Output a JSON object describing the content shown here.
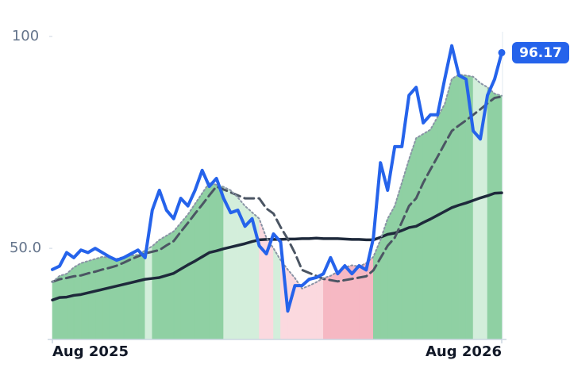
{
  "chart_data": {
    "type": "line",
    "xlim": [
      0,
      63
    ],
    "xticks": [
      {
        "value": 0,
        "label": "Aug 2025"
      },
      {
        "value": 63,
        "label": "Aug 2026"
      }
    ],
    "ylim": [
      28.5,
      108.6
    ],
    "yticks": [
      {
        "value": 50,
        "label": "50.0"
      },
      100
    ],
    "fill_colors": {
      "above_both": "#8fd0a3",
      "above_long": "#d3eedb",
      "below_long": "#f6b8c3",
      "below_both": "#fbd9df"
    },
    "series": [
      {
        "color": "#2563eb",
        "style": "price",
        "values": [
          45.0,
          45.8,
          49.0,
          47.8,
          49.6,
          49.0,
          50.0,
          49.0,
          48.0,
          47.2,
          47.8,
          48.7,
          49.6,
          47.8,
          59.0,
          63.7,
          59.0,
          57.0,
          61.8,
          60.0,
          63.7,
          68.4,
          64.6,
          66.5,
          61.8,
          58.4,
          59.0,
          55.2,
          57.0,
          50.6,
          48.7,
          53.4,
          51.5,
          35.2,
          41.2,
          41.2,
          42.7,
          43.1,
          44.0,
          47.8,
          44.0,
          45.9,
          44.0,
          45.9,
          44.9,
          52.4,
          70.2,
          63.7,
          74.0,
          74.0,
          86.1,
          88.0,
          79.6,
          81.5,
          81.5,
          89.9,
          97.8,
          90.8,
          89.9,
          77.7,
          75.8,
          86.1,
          89.9,
          96.17
        ]
      },
      {
        "color": "#8a94a6",
        "style": "dotted",
        "values": [
          42.0,
          43.5,
          44.0,
          45.5,
          46.5,
          47.0,
          47.5,
          48.0,
          47.8,
          47.5,
          48.0,
          48.3,
          48.5,
          49.5,
          50.5,
          52.0,
          53.0,
          54.0,
          56.0,
          58.0,
          60.5,
          63.0,
          65.5,
          65.0,
          64.5,
          63.7,
          62.0,
          60.0,
          58.5,
          57.0,
          52.5,
          50.0,
          47.2,
          45.0,
          43.0,
          40.5,
          41.2,
          42.0,
          43.0,
          43.5,
          44.5,
          45.5,
          46.0,
          45.7,
          46.5,
          48.0,
          52.0,
          57.0,
          60.0,
          65.5,
          71.0,
          76.0,
          77.0,
          78.0,
          81.0,
          84.0,
          90.0,
          91.0,
          90.8,
          90.5,
          89.0,
          88.0,
          86.5,
          86.0
        ]
      },
      {
        "color": "#4b5563",
        "style": "dashed",
        "values": [
          42.1,
          42.7,
          43.0,
          43.4,
          43.6,
          44.1,
          44.5,
          45.0,
          45.4,
          45.9,
          46.6,
          47.4,
          48.1,
          48.8,
          49.2,
          49.6,
          50.7,
          51.7,
          53.9,
          56.0,
          58.2,
          60.3,
          62.5,
          64.6,
          63.9,
          63.2,
          62.5,
          61.8,
          61.8,
          61.8,
          59.4,
          58.2,
          55.0,
          52.2,
          48.9,
          44.9,
          44.2,
          43.5,
          42.8,
          42.5,
          42.2,
          42.5,
          42.8,
          43.1,
          43.4,
          44.8,
          47.7,
          50.6,
          52.5,
          56.2,
          60.0,
          61.8,
          65.5,
          68.6,
          71.6,
          74.7,
          77.7,
          79.0,
          80.2,
          81.5,
          82.8,
          84.2,
          85.5,
          85.8
        ]
      },
      {
        "color": "#1e293b",
        "style": "solid",
        "values": [
          37.8,
          38.4,
          38.5,
          38.9,
          39.1,
          39.5,
          39.9,
          40.3,
          40.7,
          41.1,
          41.5,
          41.9,
          42.3,
          42.7,
          42.9,
          43.1,
          43.6,
          44.1,
          45.1,
          46.1,
          47.0,
          48.0,
          49.0,
          49.4,
          49.9,
          50.3,
          50.7,
          51.1,
          51.6,
          52.0,
          52.1,
          52.1,
          52.1,
          52.2,
          52.2,
          52.3,
          52.3,
          52.4,
          52.3,
          52.3,
          52.3,
          52.2,
          52.1,
          52.1,
          52.0,
          52.0,
          52.6,
          53.3,
          53.6,
          54.2,
          54.9,
          55.2,
          56.1,
          56.9,
          57.8,
          58.7,
          59.6,
          60.2,
          60.7,
          61.3,
          61.9,
          62.4,
          63.0,
          63.1
        ]
      }
    ]
  }
}
